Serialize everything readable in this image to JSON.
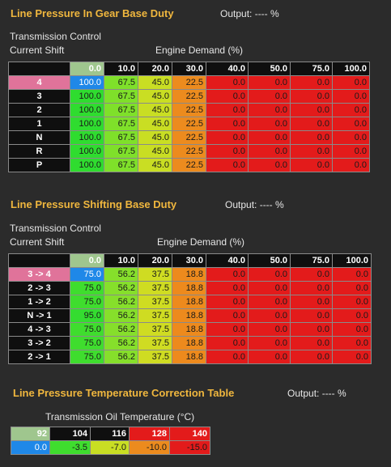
{
  "table1": {
    "title": "Line Pressure In Gear Base Duty",
    "output": "Output: ---- %",
    "axis_top": "Transmission Control",
    "axis_left": "Current Shift",
    "axis_cols": "Engine Demand (%)",
    "columns": [
      "0.0",
      "10.0",
      "20.0",
      "30.0",
      "40.0",
      "50.0",
      "75.0",
      "100.0"
    ],
    "rows": [
      {
        "label": "4",
        "values": [
          "100.0",
          "67.5",
          "45.0",
          "22.5",
          "0.0",
          "0.0",
          "0.0",
          "0.0"
        ]
      },
      {
        "label": "3",
        "values": [
          "100.0",
          "67.5",
          "45.0",
          "22.5",
          "0.0",
          "0.0",
          "0.0",
          "0.0"
        ]
      },
      {
        "label": "2",
        "values": [
          "100.0",
          "67.5",
          "45.0",
          "22.5",
          "0.0",
          "0.0",
          "0.0",
          "0.0"
        ]
      },
      {
        "label": "1",
        "values": [
          "100.0",
          "67.5",
          "45.0",
          "22.5",
          "0.0",
          "0.0",
          "0.0",
          "0.0"
        ]
      },
      {
        "label": "N",
        "values": [
          "100.0",
          "67.5",
          "45.0",
          "22.5",
          "0.0",
          "0.0",
          "0.0",
          "0.0"
        ]
      },
      {
        "label": "R",
        "values": [
          "100.0",
          "67.5",
          "45.0",
          "22.5",
          "0.0",
          "0.0",
          "0.0",
          "0.0"
        ]
      },
      {
        "label": "P",
        "values": [
          "100.0",
          "67.5",
          "45.0",
          "22.5",
          "0.0",
          "0.0",
          "0.0",
          "0.0"
        ]
      }
    ]
  },
  "table2": {
    "title": "Line Pressure Shifting Base Duty",
    "output": "Output: ---- %",
    "axis_top": "Transmission Control",
    "axis_left": "Current Shift",
    "axis_cols": "Engine Demand (%)",
    "columns": [
      "0.0",
      "10.0",
      "20.0",
      "30.0",
      "40.0",
      "50.0",
      "75.0",
      "100.0"
    ],
    "rows": [
      {
        "label": "3 -> 4",
        "values": [
          "75.0",
          "56.2",
          "37.5",
          "18.8",
          "0.0",
          "0.0",
          "0.0",
          "0.0"
        ]
      },
      {
        "label": "2 -> 3",
        "values": [
          "75.0",
          "56.2",
          "37.5",
          "18.8",
          "0.0",
          "0.0",
          "0.0",
          "0.0"
        ]
      },
      {
        "label": "1 -> 2",
        "values": [
          "75.0",
          "56.2",
          "37.5",
          "18.8",
          "0.0",
          "0.0",
          "0.0",
          "0.0"
        ]
      },
      {
        "label": "N -> 1",
        "values": [
          "95.0",
          "56.2",
          "37.5",
          "18.8",
          "0.0",
          "0.0",
          "0.0",
          "0.0"
        ]
      },
      {
        "label": "4 -> 3",
        "values": [
          "75.0",
          "56.2",
          "37.5",
          "18.8",
          "0.0",
          "0.0",
          "0.0",
          "0.0"
        ]
      },
      {
        "label": "3 -> 2",
        "values": [
          "75.0",
          "56.2",
          "37.5",
          "18.8",
          "0.0",
          "0.0",
          "0.0",
          "0.0"
        ]
      },
      {
        "label": "2 -> 1",
        "values": [
          "75.0",
          "56.2",
          "37.5",
          "18.8",
          "0.0",
          "0.0",
          "0.0",
          "0.0"
        ]
      }
    ]
  },
  "table3": {
    "title": "Line Pressure Temperature Correction Table",
    "output": "Output: ---- %",
    "axis_cols": "Transmission Oil Temperature (°C)",
    "columns": [
      "92",
      "104",
      "116",
      "128",
      "140"
    ],
    "values": [
      "0.0",
      "-3.5",
      "-7.0",
      "-10.0",
      "-15.0"
    ]
  },
  "colors": {
    "title": "#f0b73e",
    "selected_row": "#e0739a",
    "selected_cell": "#1f88e8",
    "high": "#2fdc2f",
    "mid": "#c9de23",
    "low": "#ec8b1e",
    "zero": "#e31b1b"
  }
}
